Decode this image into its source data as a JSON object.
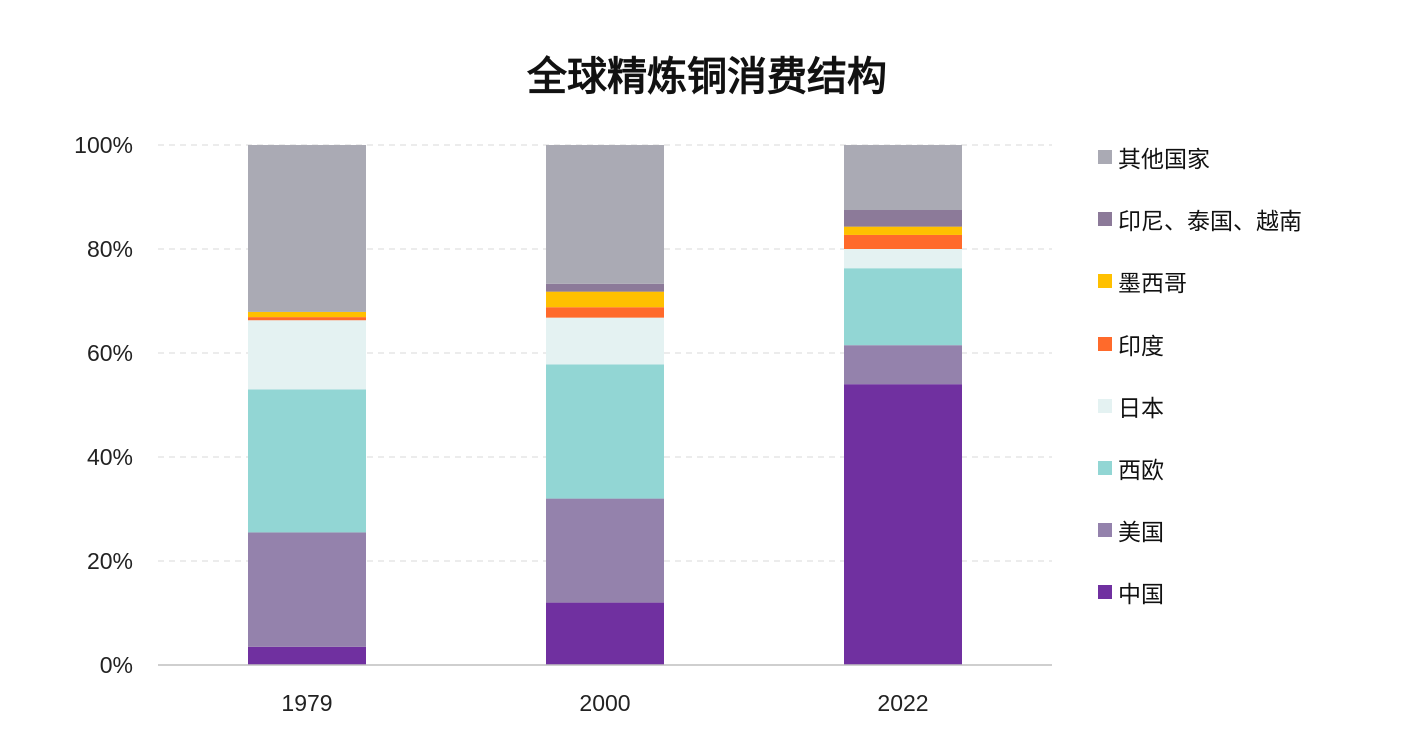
{
  "chart_data": {
    "type": "bar",
    "stacked": true,
    "title": "全球精炼铜消费结构",
    "categories": [
      "1979",
      "2000",
      "2022"
    ],
    "ylim": [
      0,
      100
    ],
    "yticks": [
      "0%",
      "20%",
      "40%",
      "60%",
      "80%",
      "100%"
    ],
    "grid": true,
    "legend_position": "right",
    "series": [
      {
        "name": "中国",
        "color": "#7030a0",
        "values": [
          3.5,
          12,
          54
        ]
      },
      {
        "name": "美国",
        "color": "#9482ac",
        "values": [
          22,
          20,
          7.5
        ]
      },
      {
        "name": "西欧",
        "color": "#92d6d4",
        "values": [
          27.5,
          25.8,
          14.8
        ]
      },
      {
        "name": "日本",
        "color": "#e4f2f2",
        "values": [
          13.3,
          9,
          3.7
        ]
      },
      {
        "name": "印度",
        "color": "#ff6a2b",
        "values": [
          0.6,
          2,
          2.7
        ]
      },
      {
        "name": "墨西哥",
        "color": "#ffc000",
        "values": [
          1,
          3,
          1.6
        ]
      },
      {
        "name": "印尼、泰国、越南",
        "color": "#8c7a99",
        "values": [
          0,
          1.5,
          3.2
        ]
      },
      {
        "name": "其他国家",
        "color": "#aaaab4",
        "values": [
          32.1,
          26.7,
          12.5
        ]
      }
    ]
  }
}
